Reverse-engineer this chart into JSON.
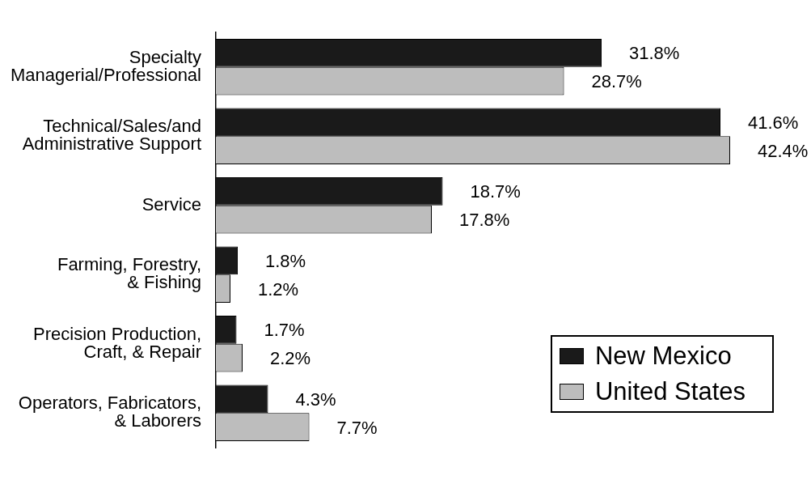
{
  "chart_data": {
    "type": "bar",
    "orientation": "horizontal",
    "categories": [
      "Specialty\nManagerial/Professional",
      "Technical/Sales/and\nAdministrative Support",
      "Service",
      "Farming, Forestry,\n& Fishing",
      "Precision Production,\nCraft, & Repair",
      "Operators, Fabricators,\n& Laborers"
    ],
    "series": [
      {
        "name": "New Mexico",
        "color": "#1a1a1a",
        "values": [
          31.8,
          41.6,
          18.7,
          1.8,
          1.7,
          4.3
        ],
        "value_labels": [
          "31.8%",
          "41.6%",
          "18.7%",
          "1.8%",
          "1.7%",
          "4.3%"
        ]
      },
      {
        "name": "United States",
        "color": "#bdbdbd",
        "values": [
          28.7,
          42.4,
          17.8,
          1.2,
          2.2,
          7.7
        ],
        "value_labels": [
          "28.7%",
          "42.4%",
          "17.8%",
          "1.2%",
          "2.2%",
          "7.7%"
        ]
      }
    ],
    "legend": "bottom right"
  }
}
